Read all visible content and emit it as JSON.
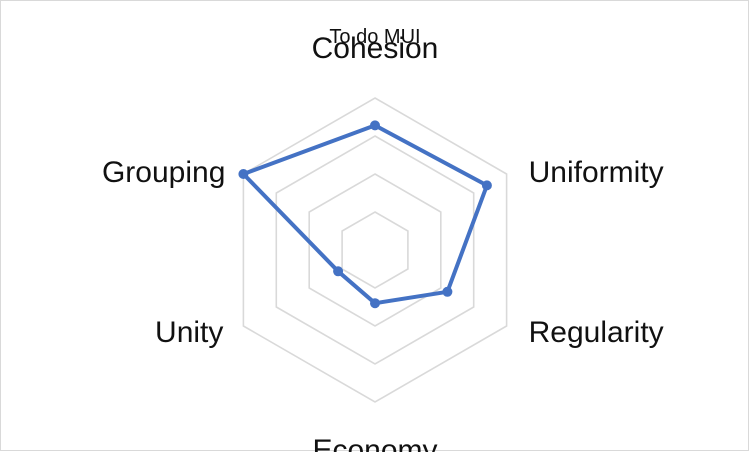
{
  "chart_data": {
    "type": "radar",
    "title": "To do MUI",
    "categories": [
      "Cohesion",
      "Uniformity",
      "Regularity",
      "Economy",
      "Unity",
      "Grouping"
    ],
    "series": [
      {
        "values": [
          0.82,
          0.85,
          0.55,
          0.35,
          0.28,
          1.0
        ]
      }
    ],
    "rlim": [
      0,
      1
    ],
    "grid_rings": 4,
    "grid": true,
    "legend": "none",
    "series_color": "#4472c4",
    "grid_color": "#d9d9d9"
  }
}
